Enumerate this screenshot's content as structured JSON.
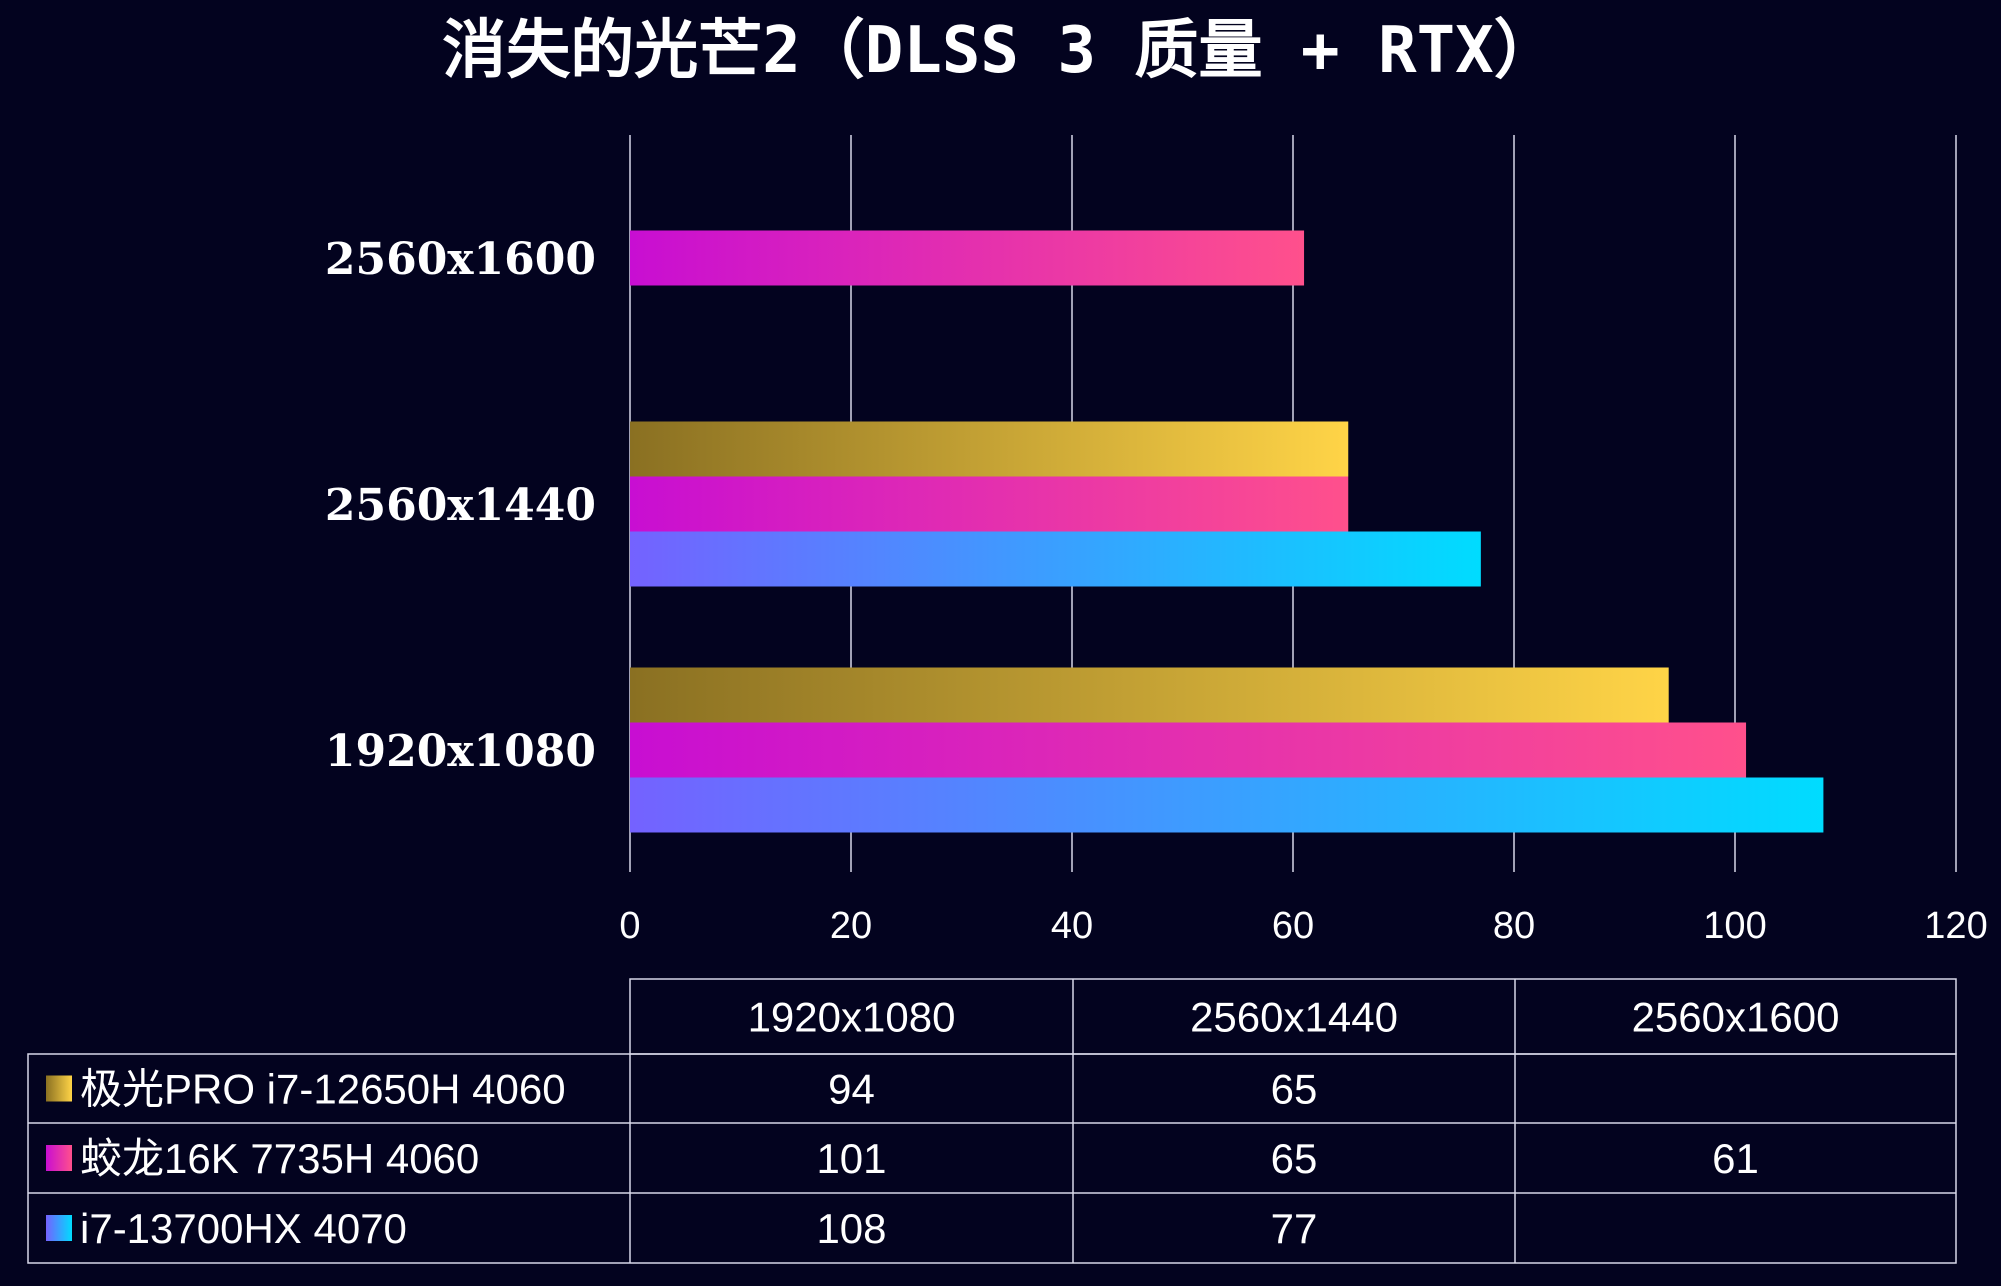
{
  "colors": {
    "background": "#03031f",
    "text": "#ffffff",
    "gridline": "#d8d8e8"
  },
  "chart_data": {
    "type": "bar",
    "orientation": "horizontal",
    "title": "消失的光芒2（DLSS 3 质量 + RTX）",
    "categories": [
      "1920x1080",
      "2560x1440",
      "2560x1600"
    ],
    "xlim": [
      0,
      120
    ],
    "xticks": [
      0,
      20,
      40,
      60,
      80,
      100,
      120
    ],
    "grid": true,
    "legend": "data-table-below",
    "series": [
      {
        "name": "极光PRO i7-12650H 4060",
        "values": [
          94,
          65,
          null
        ],
        "gradient": [
          "#8a7022",
          "#ffd447"
        ]
      },
      {
        "name": "蛟龙16K 7735H 4060",
        "values": [
          101,
          65,
          61
        ],
        "gradient": [
          "#c80ed2",
          "#ff508c"
        ]
      },
      {
        "name": "i7-13700HX 4070",
        "values": [
          108,
          77,
          null
        ],
        "gradient": [
          "#7462ff",
          "#00dcff"
        ]
      }
    ]
  }
}
